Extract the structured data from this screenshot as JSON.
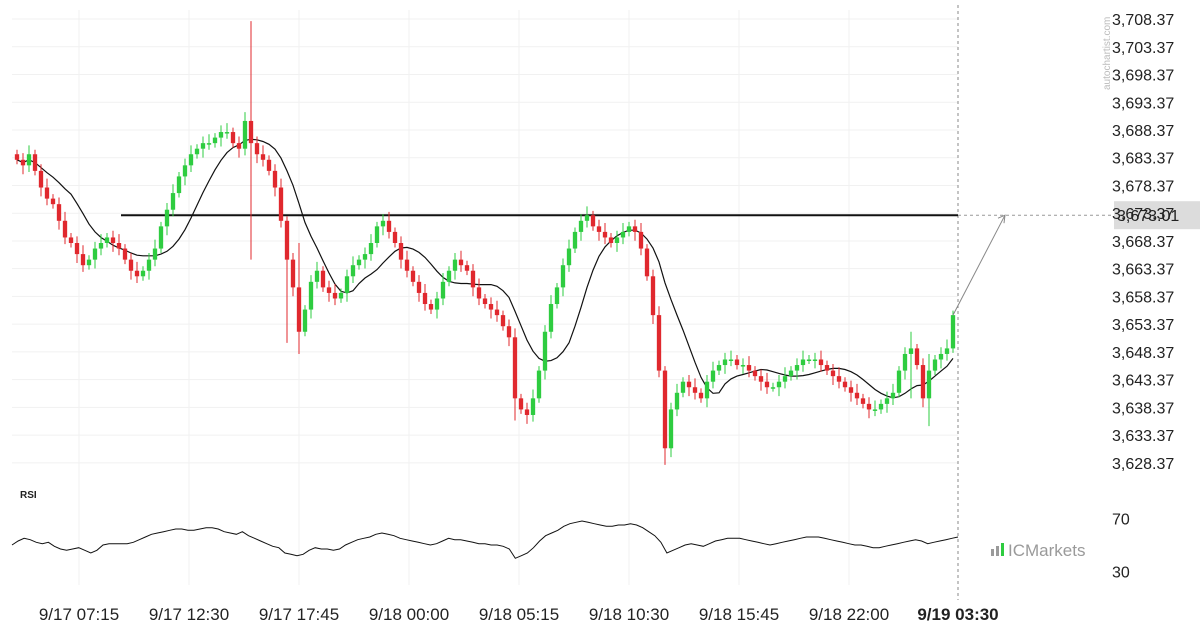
{
  "chart_data": [
    {
      "type": "candlestick",
      "title": "",
      "yaxis_ticks": [
        "3,708.37",
        "3,703.37",
        "3,698.37",
        "3,693.37",
        "3,688.37",
        "3,683.37",
        "3,678.37",
        "3,673.37",
        "3,668.37",
        "3,663.37",
        "3,658.37",
        "3,653.37",
        "3,648.37",
        "3,643.37",
        "3,638.37",
        "3,633.37",
        "3,628.37"
      ],
      "yaxis_range": [
        3626,
        3710
      ],
      "xaxis_ticks": [
        "9/17 07:15",
        "9/17 12:30",
        "9/17 17:45",
        "9/18 00:00",
        "9/18 05:15",
        "9/18 10:30",
        "9/18 15:45",
        "9/18 22:00",
        "9/19 03:30"
      ],
      "current_time_label": "9/19 03:30",
      "level_line": {
        "value": 3673.01,
        "label": "3,673.01"
      },
      "grid": true,
      "up_color": "#2ecc40",
      "down_color": "#e0282e",
      "sma_color": "#111111",
      "close_series": [
        3683,
        3682,
        3684,
        3681,
        3678,
        3676,
        3675,
        3672,
        3669,
        3668,
        3666,
        3664,
        3665,
        3667,
        3668,
        3669,
        3668,
        3667,
        3665,
        3663,
        3662,
        3663,
        3665,
        3667,
        3671,
        3674,
        3677,
        3680,
        3682,
        3684,
        3685,
        3686,
        3686,
        3687,
        3688,
        3688,
        3686,
        3685,
        3690,
        3686,
        3684,
        3683,
        3681,
        3678,
        3672,
        3665,
        3660,
        3652,
        3656,
        3661,
        3663,
        3660,
        3659,
        3658,
        3659,
        3662,
        3664,
        3665,
        3666,
        3668,
        3671,
        3672,
        3670,
        3668,
        3665,
        3663,
        3661,
        3659,
        3657,
        3656,
        3658,
        3661,
        3663,
        3665,
        3664,
        3663,
        3660,
        3658,
        3657,
        3656,
        3655,
        3653,
        3651,
        3640,
        3638,
        3637,
        3640,
        3645,
        3652,
        3657,
        3660,
        3664,
        3667,
        3670,
        3672,
        3673,
        3671,
        3670,
        3669,
        3668,
        3669,
        3670,
        3671,
        3670,
        3667,
        3662,
        3655,
        3645,
        3631,
        3638,
        3641,
        3643,
        3642,
        3641,
        3640,
        3643,
        3645,
        3646,
        3647,
        3647,
        3646,
        3646,
        3645,
        3644,
        3643,
        3642,
        3642,
        3643,
        3644,
        3645,
        3646,
        3647,
        3647,
        3647,
        3646,
        3645,
        3644,
        3643,
        3642,
        3641,
        3640,
        3639,
        3638,
        3638,
        3639,
        3640,
        3641,
        3645,
        3648,
        3649,
        3646,
        3640,
        3645,
        3647,
        3648,
        3649,
        3655
      ],
      "series": [
        {
          "name": "RSI",
          "values": [
            50,
            53,
            55,
            54,
            52,
            51,
            52,
            49,
            47,
            46,
            47,
            48,
            46,
            44,
            46,
            50,
            51,
            51,
            51,
            51,
            52,
            54,
            56,
            58,
            59,
            60,
            61,
            62,
            62,
            61,
            61,
            62,
            63,
            63,
            62,
            60,
            59,
            58,
            60,
            57,
            55,
            53,
            51,
            49,
            48,
            44,
            43,
            42,
            43,
            46,
            48,
            47,
            47,
            46,
            47,
            50,
            52,
            54,
            55,
            56,
            58,
            59,
            58,
            57,
            55,
            54,
            53,
            52,
            51,
            50,
            51,
            53,
            55,
            54,
            54,
            53,
            52,
            51,
            51,
            50,
            50,
            49,
            47,
            40,
            42,
            44,
            48,
            53,
            57,
            59,
            61,
            64,
            66,
            67,
            68,
            67,
            66,
            65,
            64,
            64,
            65,
            65,
            66,
            65,
            63,
            60,
            57,
            52,
            44,
            46,
            48,
            50,
            51,
            50,
            49,
            51,
            53,
            54,
            55,
            55,
            55,
            54,
            53,
            52,
            51,
            50,
            51,
            52,
            53,
            54,
            55,
            56,
            56,
            56,
            55,
            54,
            53,
            52,
            51,
            50,
            50,
            49,
            48,
            48,
            49,
            50,
            51,
            52,
            53,
            54,
            53,
            51,
            52,
            53,
            54,
            55,
            56
          ]
        }
      ],
      "rsi_label": "RSI",
      "rsi_ticks": [
        "70",
        "30"
      ],
      "rsi_range": [
        20,
        80
      ],
      "watermark": "autochartist.com",
      "brand_text": "ICMarkets"
    }
  ]
}
